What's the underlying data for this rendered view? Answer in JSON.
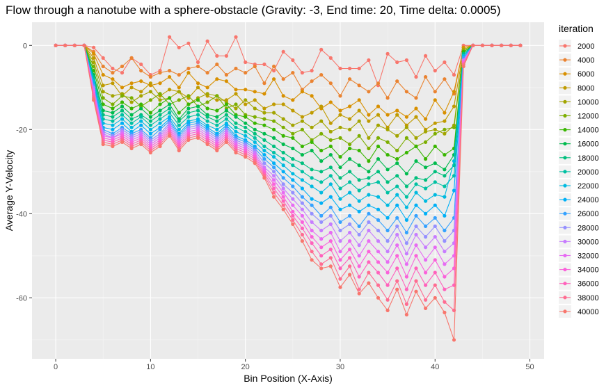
{
  "chart_data": {
    "type": "line",
    "title": "Flow through a nanotube with a sphere-obstacle (Gravity: -3, End time: 20, Time delta: 0.0005)",
    "xlabel": "Bin Position (X-Axis)",
    "ylabel": "Average Y-Velocity",
    "xlim": [
      -2.5,
      51.5
    ],
    "ylim": [
      -74.5,
      5.5
    ],
    "xticks": [
      0,
      10,
      20,
      30,
      40,
      50
    ],
    "yticks": [
      0,
      -20,
      -40,
      -60
    ],
    "grid": true,
    "legend_title": "iteration",
    "legend_position": "right",
    "x": [
      0,
      1,
      2,
      3,
      4,
      5,
      6,
      7,
      8,
      9,
      10,
      11,
      12,
      13,
      14,
      15,
      16,
      17,
      18,
      19,
      20,
      21,
      22,
      23,
      24,
      25,
      26,
      27,
      28,
      29,
      30,
      31,
      32,
      33,
      34,
      35,
      36,
      37,
      38,
      39,
      40,
      41,
      42,
      43,
      44,
      45,
      46,
      47,
      48,
      49
    ],
    "series": [
      {
        "name": "2000",
        "color": "#F8766D",
        "values": [
          0,
          0,
          0,
          0,
          -0.5,
          -3,
          -5.5,
          -6.5,
          -3,
          -4.5,
          -7,
          -6,
          2,
          -0.5,
          0.5,
          -4,
          1,
          -2.5,
          -2.5,
          2,
          -4,
          -4.5,
          -4.5,
          -6,
          -1.5,
          -3.5,
          -6.5,
          -6,
          -1,
          -3,
          -5.5,
          -5.5,
          -5.5,
          -3.5,
          -9.5,
          -2,
          -4,
          -3.5,
          -7.5,
          -2.5,
          -6,
          -4,
          -7,
          0,
          0,
          0,
          0,
          0,
          0,
          0
        ]
      },
      {
        "name": "4000",
        "color": "#EA8331",
        "values": [
          0,
          0,
          0,
          0,
          -1.5,
          -5,
          -6.5,
          -5,
          -3,
          -6,
          -7.5,
          -6.5,
          -6,
          -7,
          -5.5,
          -5,
          -6.5,
          -4.5,
          -7,
          -5.5,
          -6.5,
          -5,
          -9,
          -5,
          -8,
          -6.5,
          -10.5,
          -8.5,
          -7,
          -9,
          -12,
          -8,
          -9.5,
          -11,
          -9,
          -12.5,
          -8.5,
          -11,
          -12.5,
          -7.5,
          -11,
          -8,
          -11.5,
          -0.5,
          0,
          0,
          0,
          0,
          0,
          0
        ]
      },
      {
        "name": "6000",
        "color": "#D89000",
        "values": [
          0,
          0,
          0,
          0,
          -2,
          -7,
          -8,
          -10,
          -9,
          -8.5,
          -9.5,
          -9,
          -7.5,
          -10,
          -6.5,
          -9,
          -10,
          -8,
          -8.5,
          -10.5,
          -10.5,
          -11,
          -11.5,
          -8,
          -12,
          -13,
          -11,
          -12,
          -15,
          -13.5,
          -15.5,
          -14.5,
          -13,
          -16.5,
          -14.5,
          -16.5,
          -15.5,
          -17,
          -15,
          -17.5,
          -13,
          -16,
          -11,
          -0.5,
          0,
          0,
          0,
          0,
          0,
          0
        ]
      },
      {
        "name": "8000",
        "color": "#C09B00",
        "values": [
          0,
          0,
          0,
          0,
          -3,
          -9.5,
          -9,
          -12,
          -10,
          -11,
          -9,
          -12,
          -10.5,
          -11,
          -12.5,
          -10,
          -12,
          -13,
          -13,
          -11.5,
          -14,
          -13,
          -15,
          -14,
          -14,
          -15.5,
          -17,
          -16,
          -14.5,
          -18.5,
          -16.5,
          -17.5,
          -15.5,
          -18,
          -16.5,
          -19.5,
          -16.5,
          -19,
          -17,
          -20,
          -18.5,
          -18,
          -14.5,
          -1,
          0,
          0,
          0,
          0,
          0,
          0
        ]
      },
      {
        "name": "10000",
        "color": "#A3A500",
        "values": [
          0,
          0,
          0,
          0,
          -4,
          -11,
          -12,
          -11.5,
          -13.5,
          -12,
          -11,
          -13,
          -12.5,
          -11,
          -14,
          -12.5,
          -11.5,
          -12,
          -13.5,
          -15,
          -13,
          -15,
          -16,
          -16,
          -17.5,
          -19,
          -18,
          -19.5,
          -18,
          -20.5,
          -19.5,
          -20,
          -18,
          -22,
          -19,
          -20,
          -21.5,
          -19.5,
          -22,
          -20.5,
          -20,
          -21,
          -19,
          -1,
          0,
          0,
          0,
          0,
          0,
          0
        ]
      },
      {
        "name": "12000",
        "color": "#7CAE00",
        "values": [
          0,
          0,
          0,
          0,
          -5,
          -12.5,
          -14,
          -12,
          -12.5,
          -14.5,
          -13,
          -11.5,
          -14,
          -13,
          -12,
          -14.5,
          -13.5,
          -12,
          -15,
          -14,
          -16.5,
          -17,
          -17.5,
          -18,
          -19.5,
          -21,
          -20,
          -22.5,
          -21,
          -22.5,
          -22,
          -23.5,
          -21.5,
          -24.5,
          -22,
          -23,
          -25,
          -22,
          -24,
          -23,
          -21,
          -20,
          -19.5,
          -1.5,
          0,
          0,
          0,
          0,
          0,
          0
        ]
      },
      {
        "name": "14000",
        "color": "#39B600",
        "values": [
          0,
          0,
          0,
          0,
          -6,
          -14,
          -15,
          -13.5,
          -15,
          -14,
          -16,
          -14,
          -12.5,
          -16,
          -14,
          -13,
          -15,
          -15.5,
          -14,
          -16.5,
          -17,
          -18.5,
          -19,
          -20,
          -21.5,
          -22,
          -24,
          -23,
          -25,
          -24,
          -26.5,
          -24.5,
          -25,
          -27.5,
          -24,
          -26,
          -27,
          -25.5,
          -24,
          -27,
          -24,
          -26,
          -24.5,
          -1.5,
          0,
          0,
          0,
          0,
          0,
          0
        ]
      },
      {
        "name": "16000",
        "color": "#00BB4E",
        "values": [
          0,
          0,
          0,
          0,
          -7,
          -15.5,
          -16,
          -14.5,
          -16.5,
          -15,
          -17,
          -15.5,
          -14,
          -17.5,
          -15,
          -14.5,
          -16.5,
          -17,
          -15.5,
          -17,
          -18.5,
          -20,
          -21,
          -22,
          -23.5,
          -24.5,
          -26,
          -25,
          -27.5,
          -26,
          -29,
          -27,
          -28.5,
          -30,
          -27,
          -29.5,
          -28,
          -30.5,
          -27.5,
          -29,
          -28,
          -29.5,
          -26,
          -2,
          0,
          0,
          0,
          0,
          0,
          0
        ]
      },
      {
        "name": "18000",
        "color": "#00BF7D",
        "values": [
          0,
          0,
          0,
          0,
          -7.5,
          -16.5,
          -17,
          -15.5,
          -17.5,
          -16.5,
          -18,
          -16.5,
          -15,
          -18,
          -16,
          -15.5,
          -17,
          -18,
          -16.5,
          -18.5,
          -19.5,
          -21,
          -22.5,
          -24,
          -25.5,
          -27,
          -28,
          -29.5,
          -30,
          -29,
          -31.5,
          -30,
          -32,
          -31.5,
          -30,
          -32.5,
          -31,
          -33.5,
          -31.5,
          -32,
          -30,
          -31,
          -28.5,
          -2,
          0,
          0,
          0,
          0,
          0,
          0
        ]
      },
      {
        "name": "20000",
        "color": "#00C1A3",
        "values": [
          0,
          0,
          0,
          0,
          -8,
          -17.5,
          -18,
          -16.5,
          -18.5,
          -17,
          -19,
          -17.5,
          -16,
          -19,
          -17,
          -16.5,
          -18,
          -19,
          -17.5,
          -19.5,
          -20.5,
          -22,
          -24,
          -25.5,
          -27,
          -28.5,
          -30,
          -31.5,
          -32.5,
          -31,
          -34,
          -32.5,
          -34.5,
          -33,
          -32.5,
          -35,
          -33.5,
          -36,
          -33,
          -34,
          -32.5,
          -33.5,
          -31,
          -2.5,
          0,
          0,
          0,
          0,
          0,
          0
        ]
      },
      {
        "name": "22000",
        "color": "#00BAE0",
        "values": [
          0,
          0,
          0,
          0,
          -8.5,
          -18.5,
          -19,
          -17.5,
          -19.5,
          -18,
          -20,
          -18.5,
          -17,
          -20,
          -18,
          -17.5,
          -19,
          -20,
          -18.5,
          -20.5,
          -21.5,
          -23,
          -25,
          -26.5,
          -28.5,
          -30.5,
          -32,
          -33.5,
          -35,
          -33,
          -36.5,
          -35,
          -37,
          -35.5,
          -36,
          -38,
          -35.5,
          -38.5,
          -35,
          -37,
          -35.5,
          -36,
          -27.5,
          -2.5,
          0,
          0,
          0,
          0,
          0,
          0
        ]
      },
      {
        "name": "24000",
        "color": "#00B0F6",
        "values": [
          0,
          0,
          0,
          0,
          -9,
          -19.5,
          -20,
          -18.5,
          -20.5,
          -19,
          -21,
          -19.5,
          -17.5,
          -21,
          -18.5,
          -18,
          -19.5,
          -21,
          -19,
          -21.5,
          -22.5,
          -24,
          -26,
          -28,
          -30,
          -32,
          -34,
          -36.5,
          -37.5,
          -36,
          -39,
          -38,
          -39.5,
          -38,
          -39,
          -41,
          -38,
          -41.5,
          -38,
          -40,
          -38,
          -40.5,
          -34.5,
          -3,
          0,
          0,
          0,
          0,
          0,
          0
        ]
      },
      {
        "name": "26000",
        "color": "#35A2FF",
        "values": [
          0,
          0,
          0,
          0,
          -9.5,
          -20,
          -21,
          -19.5,
          -21,
          -20,
          -22,
          -20,
          -18,
          -21.5,
          -19,
          -18.5,
          -20,
          -21.5,
          -19.5,
          -22,
          -23,
          -24.5,
          -27,
          -29,
          -31.5,
          -33.5,
          -36,
          -38,
          -40.5,
          -38.5,
          -42,
          -40.5,
          -43,
          -40,
          -41.5,
          -44,
          -41,
          -44.5,
          -40.5,
          -43,
          -41,
          -44,
          -41,
          -3,
          0,
          0,
          0,
          0,
          0,
          0
        ]
      },
      {
        "name": "28000",
        "color": "#9590FF",
        "values": [
          0,
          0,
          0,
          0,
          -10,
          -20.5,
          -21.5,
          -20,
          -21.5,
          -20.5,
          -22.5,
          -21,
          -18.5,
          -22,
          -19.5,
          -19,
          -20.5,
          -22,
          -20,
          -22.5,
          -23.5,
          -25,
          -28,
          -30,
          -33,
          -35,
          -37.5,
          -40,
          -42,
          -40.5,
          -44,
          -42.5,
          -45,
          -42,
          -44,
          -46.5,
          -43,
          -47,
          -43,
          -45.5,
          -43,
          -46.5,
          -44,
          -3.5,
          0,
          0,
          0,
          0,
          0,
          0
        ]
      },
      {
        "name": "30000",
        "color": "#C77CFF",
        "values": [
          0,
          0,
          0,
          0,
          -10.5,
          -21,
          -22,
          -20.5,
          -22,
          -21,
          -23,
          -21.5,
          -19,
          -22.5,
          -20,
          -19.5,
          -21,
          -22.5,
          -20.5,
          -23,
          -24,
          -25.5,
          -29,
          -31,
          -34,
          -36.5,
          -39,
          -42,
          -44,
          -42.5,
          -46.5,
          -44.5,
          -47.5,
          -44,
          -46.5,
          -49,
          -45,
          -49.5,
          -45,
          -48,
          -45.5,
          -49,
          -47,
          -3.5,
          0,
          0,
          0,
          0,
          0,
          0
        ]
      },
      {
        "name": "32000",
        "color": "#E76BF3",
        "values": [
          0,
          0,
          0,
          0,
          -11,
          -21.5,
          -22,
          -21,
          -22.5,
          -21.5,
          -23.5,
          -22,
          -19.5,
          -23,
          -20.5,
          -20,
          -21.5,
          -23,
          -21,
          -23.5,
          -24.5,
          -26,
          -29.5,
          -32,
          -35,
          -38,
          -40.5,
          -44,
          -46,
          -44.5,
          -49,
          -46.5,
          -50,
          -46.5,
          -49,
          -51.5,
          -47.5,
          -52,
          -47.5,
          -51,
          -48,
          -52,
          -50,
          -4,
          0,
          0,
          0,
          0,
          0,
          0
        ]
      },
      {
        "name": "34000",
        "color": "#FA62DB",
        "values": [
          0,
          0,
          0,
          0,
          -11.5,
          -22,
          -22.5,
          -21.5,
          -23,
          -22,
          -24,
          -22.5,
          -20,
          -23.5,
          -21,
          -20.5,
          -22,
          -23.5,
          -21.5,
          -24,
          -25,
          -26.5,
          -30,
          -33,
          -36,
          -39.5,
          -42,
          -45.5,
          -48,
          -46.5,
          -51,
          -48.5,
          -52.5,
          -49,
          -51.5,
          -54,
          -50,
          -55,
          -50,
          -54,
          -51,
          -55,
          -53,
          -4,
          0,
          0,
          0,
          0,
          0,
          0
        ]
      },
      {
        "name": "36000",
        "color": "#FF62BC",
        "values": [
          0,
          0,
          0,
          0,
          -12,
          -22.5,
          -23,
          -22,
          -23.5,
          -22.5,
          -24.5,
          -23,
          -20.5,
          -24,
          -21.5,
          -21,
          -22.5,
          -24,
          -22,
          -24.5,
          -25.5,
          -27,
          -30.5,
          -34,
          -37,
          -40.5,
          -43.5,
          -47,
          -50,
          -48.5,
          -53,
          -50.5,
          -55,
          -51.5,
          -54,
          -57,
          -53,
          -58,
          -53,
          -57,
          -54,
          -58,
          -57,
          -4.5,
          0,
          0,
          0,
          0,
          0,
          0
        ]
      },
      {
        "name": "38000",
        "color": "#FF6C91",
        "values": [
          0,
          0,
          0,
          0,
          -12.5,
          -23,
          -23.5,
          -22.5,
          -24,
          -23,
          -25,
          -23.5,
          -21,
          -24.5,
          -22,
          -21.5,
          -23,
          -24.5,
          -22.5,
          -25,
          -26,
          -27.5,
          -31,
          -35,
          -38,
          -41.5,
          -45,
          -49,
          -52,
          -50.5,
          -55.5,
          -52.5,
          -58,
          -54,
          -57,
          -60.5,
          -56,
          -61.5,
          -56,
          -60.5,
          -57,
          -61,
          -63,
          -4.5,
          0,
          0,
          0,
          0,
          0,
          0
        ]
      },
      {
        "name": "40000",
        "color": "#F8766D",
        "values": [
          0,
          0,
          0,
          0,
          -13,
          -23.5,
          -24,
          -23,
          -24.5,
          -23.5,
          -25.5,
          -24,
          -21.5,
          -25,
          -22.5,
          -22,
          -23.5,
          -25,
          -23,
          -25.5,
          -26.5,
          -28,
          -31.5,
          -36,
          -39,
          -42.5,
          -46.5,
          -51,
          -53,
          -52.5,
          -57.5,
          -54.5,
          -59,
          -56.5,
          -60,
          -63,
          -58,
          -64,
          -58.5,
          -62.5,
          -60,
          -63.5,
          -70,
          -5,
          0,
          0,
          0,
          0,
          0,
          0
        ]
      }
    ]
  }
}
